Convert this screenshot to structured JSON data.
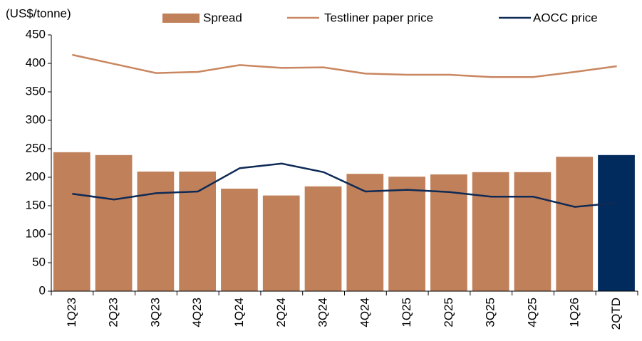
{
  "chart_data": {
    "type": "bar",
    "y_label": "(US$/tonne)",
    "categories": [
      "1Q23",
      "2Q23",
      "3Q23",
      "4Q23",
      "1Q24",
      "2Q24",
      "3Q24",
      "4Q24",
      "1Q25",
      "2Q25",
      "3Q25",
      "4Q25",
      "1Q26",
      "2QTD"
    ],
    "series": [
      {
        "name": "Spread",
        "type": "bar",
        "color": "#c0805a",
        "colors": [
          "#c0805a",
          "#c0805a",
          "#c0805a",
          "#c0805a",
          "#c0805a",
          "#c0805a",
          "#c0805a",
          "#c0805a",
          "#c0805a",
          "#c0805a",
          "#c0805a",
          "#c0805a",
          "#c0805a",
          "#002b5c"
        ],
        "values": [
          244,
          239,
          210,
          210,
          180,
          168,
          184,
          206,
          201,
          205,
          209,
          209,
          236,
          239
        ]
      },
      {
        "name": "Testliner paper price",
        "type": "line",
        "color": "#c98660",
        "values": [
          415,
          399,
          383,
          385,
          397,
          392,
          393,
          382,
          380,
          380,
          376,
          376,
          385,
          395
        ]
      },
      {
        "name": "AOCC price",
        "type": "line",
        "color": "#0e2a55",
        "values": [
          171,
          161,
          172,
          175,
          216,
          224,
          209,
          175,
          178,
          174,
          166,
          166,
          148,
          155
        ]
      }
    ],
    "ylim": [
      0,
      450
    ],
    "yticks": [
      0,
      50,
      100,
      150,
      200,
      250,
      300,
      350,
      400,
      450
    ],
    "grid": false
  }
}
